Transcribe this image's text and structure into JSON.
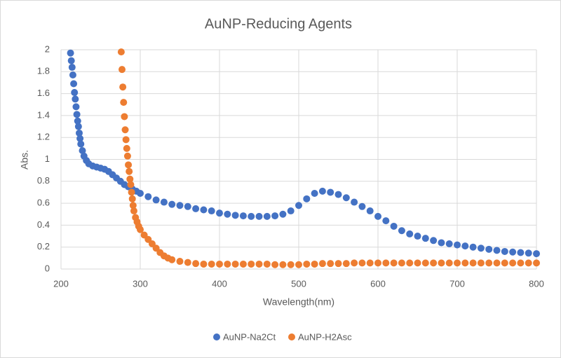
{
  "chart_data": {
    "type": "scatter",
    "title": "AuNP-Reducing Agents",
    "xlabel": "Wavelength(nm)",
    "ylabel": "Abs.",
    "xlim": [
      200,
      800
    ],
    "xticks": [
      200,
      300,
      400,
      500,
      600,
      700,
      800
    ],
    "ylim": [
      0,
      2
    ],
    "yticks": [
      0,
      0.2,
      0.4,
      0.6,
      0.8,
      1,
      1.2,
      1.4,
      1.6,
      1.8,
      2
    ],
    "grid": true,
    "legend": "bottom",
    "series": [
      {
        "name": "AuNP-Na2Ct",
        "color": "#4472c4",
        "x": [
          212,
          213,
          214,
          215,
          216,
          217,
          218,
          219,
          220,
          221,
          222,
          223,
          224,
          225,
          227,
          229,
          232,
          235,
          240,
          245,
          250,
          255,
          260,
          265,
          270,
          275,
          280,
          285,
          290,
          295,
          300,
          310,
          320,
          330,
          340,
          350,
          360,
          370,
          380,
          390,
          400,
          410,
          420,
          430,
          440,
          450,
          460,
          470,
          480,
          490,
          500,
          510,
          520,
          530,
          540,
          550,
          560,
          570,
          580,
          590,
          600,
          610,
          620,
          630,
          640,
          650,
          660,
          670,
          680,
          690,
          700,
          710,
          720,
          730,
          740,
          750,
          760,
          770,
          780,
          790,
          800
        ],
        "values": [
          1.97,
          1.9,
          1.84,
          1.77,
          1.69,
          1.61,
          1.55,
          1.48,
          1.41,
          1.35,
          1.3,
          1.24,
          1.19,
          1.14,
          1.08,
          1.03,
          0.99,
          0.96,
          0.94,
          0.93,
          0.92,
          0.91,
          0.89,
          0.86,
          0.83,
          0.8,
          0.77,
          0.75,
          0.73,
          0.71,
          0.69,
          0.66,
          0.63,
          0.61,
          0.59,
          0.58,
          0.57,
          0.55,
          0.54,
          0.53,
          0.51,
          0.5,
          0.49,
          0.485,
          0.48,
          0.48,
          0.48,
          0.485,
          0.5,
          0.53,
          0.58,
          0.64,
          0.69,
          0.71,
          0.7,
          0.68,
          0.65,
          0.61,
          0.57,
          0.53,
          0.48,
          0.44,
          0.39,
          0.35,
          0.32,
          0.3,
          0.28,
          0.26,
          0.24,
          0.23,
          0.22,
          0.21,
          0.2,
          0.19,
          0.18,
          0.17,
          0.16,
          0.155,
          0.15,
          0.145,
          0.14
        ]
      },
      {
        "name": "AuNP-H2Asc",
        "color": "#ed7d31",
        "x": [
          276,
          277,
          278,
          279,
          280,
          281,
          282,
          283,
          284,
          285,
          286,
          287,
          288,
          289,
          290,
          291,
          292,
          294,
          296,
          298,
          300,
          305,
          310,
          315,
          320,
          325,
          330,
          335,
          340,
          350,
          360,
          370,
          380,
          390,
          400,
          410,
          420,
          430,
          440,
          450,
          460,
          470,
          480,
          490,
          500,
          510,
          520,
          530,
          540,
          550,
          560,
          570,
          580,
          590,
          600,
          610,
          620,
          630,
          640,
          650,
          660,
          670,
          680,
          690,
          700,
          710,
          720,
          730,
          740,
          750,
          760,
          770,
          780,
          790,
          800
        ],
        "values": [
          1.98,
          1.82,
          1.66,
          1.52,
          1.39,
          1.27,
          1.18,
          1.1,
          1.03,
          0.95,
          0.89,
          0.82,
          0.77,
          0.7,
          0.64,
          0.58,
          0.53,
          0.47,
          0.43,
          0.39,
          0.36,
          0.31,
          0.27,
          0.23,
          0.19,
          0.15,
          0.12,
          0.1,
          0.085,
          0.07,
          0.06,
          0.05,
          0.045,
          0.045,
          0.045,
          0.045,
          0.045,
          0.045,
          0.045,
          0.045,
          0.045,
          0.04,
          0.04,
          0.04,
          0.04,
          0.045,
          0.045,
          0.05,
          0.05,
          0.05,
          0.05,
          0.055,
          0.055,
          0.055,
          0.055,
          0.055,
          0.055,
          0.055,
          0.055,
          0.055,
          0.055,
          0.055,
          0.055,
          0.055,
          0.055,
          0.055,
          0.055,
          0.055,
          0.055,
          0.055,
          0.055,
          0.055,
          0.055,
          0.055,
          0.055
        ]
      }
    ]
  }
}
